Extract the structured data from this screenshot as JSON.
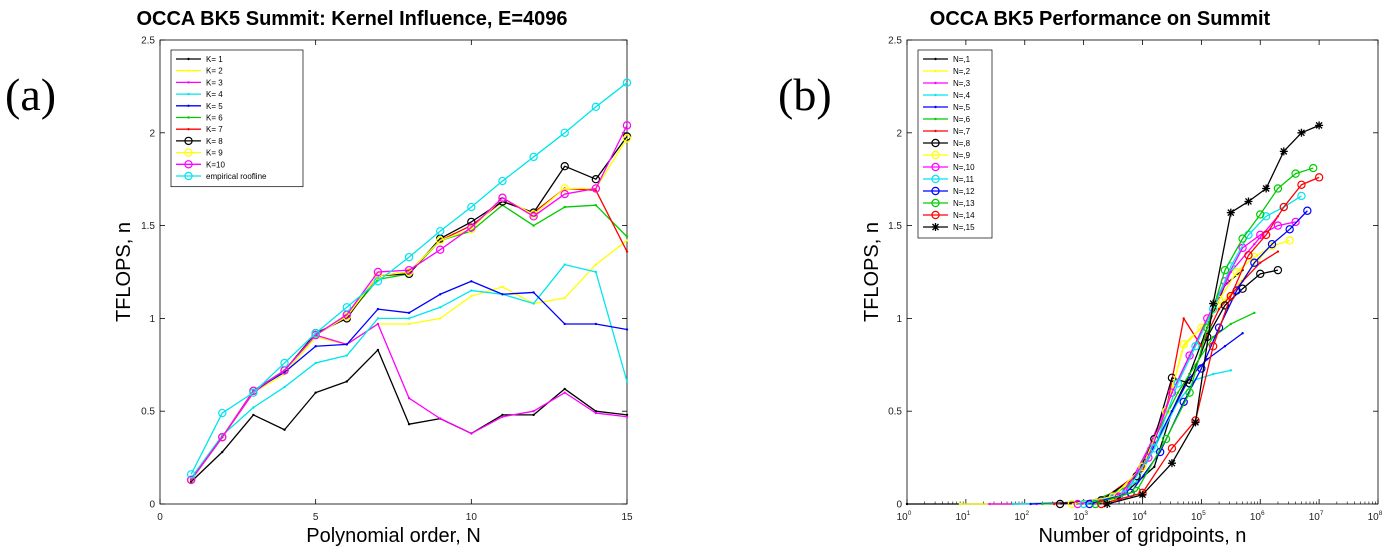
{
  "chart_data": [
    {
      "type": "line",
      "panel_label": "(a)",
      "title": "OCCA BK5 Summit: Kernel Influence, E=4096",
      "xlabel": "Polynomial order, N",
      "ylabel": "TFLOPS, n",
      "xlim": [
        0,
        15
      ],
      "ylim": [
        0,
        2.5
      ],
      "x_ticks": [
        0,
        5,
        10,
        15
      ],
      "y_ticks": [
        0,
        0.5,
        1,
        1.5,
        2,
        2.5
      ],
      "legend_position": "top-left",
      "x": [
        1,
        2,
        3,
        4,
        5,
        6,
        7,
        8,
        9,
        10,
        11,
        12,
        13,
        14,
        15
      ],
      "series": [
        {
          "name": "K= 1",
          "color": "#000000",
          "marker": "dot",
          "values": [
            0.12,
            0.28,
            0.48,
            0.4,
            0.6,
            0.66,
            0.83,
            0.43,
            0.46,
            0.38,
            0.48,
            0.48,
            0.62,
            0.5,
            0.48
          ]
        },
        {
          "name": "K= 2",
          "color": "#ffff00",
          "marker": "dot",
          "values": [
            0.13,
            0.36,
            0.6,
            0.7,
            0.9,
            0.86,
            0.97,
            0.97,
            1.0,
            1.12,
            1.17,
            1.08,
            1.11,
            1.29,
            1.42
          ]
        },
        {
          "name": "K= 3",
          "color": "#ff00ff",
          "marker": "dot",
          "values": [
            0.13,
            0.36,
            0.6,
            0.72,
            0.91,
            0.86,
            0.97,
            0.57,
            0.46,
            0.38,
            0.47,
            0.5,
            0.6,
            0.49,
            0.47
          ]
        },
        {
          "name": "K= 4",
          "color": "#00e5ee",
          "marker": "dot",
          "values": [
            0.14,
            0.37,
            0.52,
            0.63,
            0.76,
            0.8,
            1.0,
            1.0,
            1.06,
            1.15,
            1.13,
            1.08,
            1.29,
            1.25,
            0.66
          ]
        },
        {
          "name": "K= 5",
          "color": "#0000ff",
          "marker": "dot",
          "values": [
            0.13,
            0.36,
            0.61,
            0.71,
            0.85,
            0.86,
            1.05,
            1.03,
            1.13,
            1.2,
            1.13,
            1.14,
            0.97,
            0.97,
            0.94
          ]
        },
        {
          "name": "K= 6",
          "color": "#00cc00",
          "marker": "dot",
          "values": [
            0.13,
            0.36,
            0.61,
            0.72,
            0.91,
            1.01,
            1.21,
            1.24,
            1.42,
            1.47,
            1.61,
            1.5,
            1.6,
            1.61,
            1.44
          ]
        },
        {
          "name": "K= 7",
          "color": "#ff0000",
          "marker": "dot",
          "values": [
            0.13,
            0.36,
            0.61,
            0.72,
            0.91,
            1.01,
            1.23,
            1.25,
            1.42,
            1.5,
            1.63,
            1.57,
            1.7,
            1.69,
            1.36
          ]
        },
        {
          "name": "K= 8",
          "color": "#000000",
          "marker": "circle",
          "values": [
            0.13,
            0.36,
            0.61,
            0.72,
            0.92,
            1.0,
            1.23,
            1.24,
            1.43,
            1.52,
            1.63,
            1.57,
            1.82,
            1.75,
            1.98
          ]
        },
        {
          "name": "K= 9",
          "color": "#ffff00",
          "marker": "circle",
          "values": [
            0.13,
            0.36,
            0.61,
            0.72,
            0.91,
            1.01,
            1.23,
            1.25,
            1.42,
            1.48,
            1.65,
            1.56,
            1.7,
            1.7,
            1.97
          ]
        },
        {
          "name": "K=10",
          "color": "#ff00ff",
          "marker": "circle",
          "values": [
            0.13,
            0.36,
            0.61,
            0.72,
            0.91,
            1.02,
            1.25,
            1.26,
            1.37,
            1.49,
            1.65,
            1.55,
            1.67,
            1.7,
            2.04
          ]
        },
        {
          "name": "empirical roofline",
          "color": "#00e5ee",
          "marker": "circle",
          "values": [
            0.16,
            0.49,
            0.6,
            0.76,
            0.92,
            1.06,
            1.2,
            1.33,
            1.47,
            1.6,
            1.74,
            1.87,
            2.0,
            2.14,
            2.27
          ]
        }
      ]
    },
    {
      "type": "line",
      "panel_label": "(b)",
      "title": "OCCA BK5 Performance on Summit",
      "xlabel": "Number of gridpoints, n",
      "ylabel": "TFLOPS, n",
      "xscale": "log",
      "xlim_exponents": [
        0,
        8
      ],
      "ylim": [
        0,
        2.5
      ],
      "x_tick_base": "10",
      "x_tick_exponents": [
        "0",
        "1",
        "2",
        "3",
        "4",
        "5",
        "6",
        "7",
        "8"
      ],
      "y_ticks": [
        0,
        0.5,
        1,
        1.5,
        2,
        2.5
      ],
      "legend_position": "top-left",
      "series": [
        {
          "name": "N=,1",
          "color": "#000000",
          "marker": "dot",
          "log10_x": [
            0.0,
            0.9,
            1.8,
            2.7,
            3.6,
            4.2,
            4.5,
            4.8,
            5.1,
            5.4,
            5.7
          ],
          "values": [
            0.0,
            0.0,
            0.0,
            0.005,
            0.03,
            0.2,
            0.5,
            0.7,
            0.95,
            1.18,
            1.26
          ]
        },
        {
          "name": "N=,2",
          "color": "#ffff00",
          "marker": "dot",
          "log10_x": [
            0.9,
            1.8,
            2.7,
            3.5,
            4.0,
            4.4,
            4.7,
            5.0,
            5.4,
            5.8,
            6.2
          ],
          "values": [
            0.0,
            0.0,
            0.005,
            0.03,
            0.2,
            0.5,
            0.85,
            0.95,
            1.1,
            1.25,
            1.4
          ]
        },
        {
          "name": "N=,3",
          "color": "#ff00ff",
          "marker": "dot",
          "log10_x": [
            1.4,
            2.2,
            3.0,
            3.7,
            4.1,
            4.5,
            4.8,
            5.2,
            5.5,
            5.9,
            6.3
          ],
          "values": [
            0.0,
            0.0,
            0.01,
            0.06,
            0.3,
            0.6,
            0.8,
            1.05,
            1.25,
            1.4,
            1.55
          ]
        },
        {
          "name": "N=,4",
          "color": "#00e5ee",
          "marker": "dot",
          "log10_x": [
            1.8,
            2.6,
            3.3,
            3.9,
            4.2,
            4.6,
            4.9,
            5.2,
            5.5
          ],
          "values": [
            0.0,
            0.005,
            0.02,
            0.12,
            0.3,
            0.55,
            0.67,
            0.7,
            0.72
          ]
        },
        {
          "name": "N=,5",
          "color": "#0000ff",
          "marker": "dot",
          "log10_x": [
            2.1,
            2.9,
            3.6,
            4.1,
            4.5,
            4.8,
            5.1,
            5.4,
            5.7
          ],
          "values": [
            0.0,
            0.01,
            0.04,
            0.25,
            0.5,
            0.68,
            0.78,
            0.85,
            0.92
          ]
        },
        {
          "name": "N=,6",
          "color": "#00cc00",
          "marker": "dot",
          "log10_x": [
            2.3,
            3.1,
            3.8,
            4.2,
            4.6,
            4.9,
            5.2,
            5.5,
            5.9
          ],
          "values": [
            0.0,
            0.01,
            0.1,
            0.35,
            0.6,
            0.75,
            0.9,
            0.97,
            1.03
          ]
        },
        {
          "name": "N=,7",
          "color": "#ff0000",
          "marker": "dot",
          "log10_x": [
            2.5,
            3.3,
            4.0,
            4.4,
            4.7,
            5.0,
            5.3,
            5.7,
            6.0,
            6.3
          ],
          "values": [
            0.0,
            0.02,
            0.18,
            0.5,
            1.0,
            0.85,
            1.05,
            1.2,
            1.3,
            1.36
          ]
        },
        {
          "name": "N=,8",
          "color": "#000000",
          "marker": "circle",
          "log10_x": [
            2.6,
            3.3,
            3.9,
            4.2,
            4.5,
            4.8,
            5.1,
            5.4,
            5.7,
            6.0,
            6.3
          ],
          "values": [
            0.0,
            0.02,
            0.15,
            0.35,
            0.68,
            0.65,
            0.9,
            1.07,
            1.16,
            1.24,
            1.26
          ]
        },
        {
          "name": "N=,9",
          "color": "#ffff00",
          "marker": "circle",
          "log10_x": [
            2.8,
            3.5,
            4.0,
            4.4,
            4.7,
            5.0,
            5.3,
            5.6,
            5.9,
            6.2,
            6.5
          ],
          "values": [
            0.0,
            0.04,
            0.2,
            0.5,
            0.86,
            0.95,
            1.1,
            1.25,
            1.33,
            1.39,
            1.42
          ]
        },
        {
          "name": "N=,10",
          "color": "#ff00ff",
          "marker": "circle",
          "log10_x": [
            2.9,
            3.6,
            4.1,
            4.5,
            4.8,
            5.1,
            5.4,
            5.7,
            6.0,
            6.3,
            6.6
          ],
          "values": [
            0.0,
            0.04,
            0.25,
            0.6,
            0.8,
            1.0,
            1.2,
            1.38,
            1.45,
            1.5,
            1.52
          ]
        },
        {
          "name": "N=,11",
          "color": "#00e5ee",
          "marker": "circle",
          "log10_x": [
            3.0,
            3.7,
            4.2,
            4.6,
            4.9,
            5.2,
            5.5,
            5.8,
            6.1,
            6.4,
            6.7
          ],
          "values": [
            0.0,
            0.05,
            0.3,
            0.65,
            0.85,
            1.05,
            1.28,
            1.45,
            1.55,
            1.6,
            1.66
          ]
        },
        {
          "name": "N=,12",
          "color": "#0000ff",
          "marker": "circle",
          "log10_x": [
            3.1,
            3.8,
            4.3,
            4.7,
            5.0,
            5.3,
            5.6,
            5.9,
            6.2,
            6.5,
            6.8
          ],
          "values": [
            0.0,
            0.06,
            0.28,
            0.55,
            0.73,
            0.95,
            1.15,
            1.3,
            1.4,
            1.48,
            1.58
          ]
        },
        {
          "name": "N=,13",
          "color": "#00cc00",
          "marker": "circle",
          "log10_x": [
            3.2,
            3.9,
            4.4,
            4.8,
            5.1,
            5.4,
            5.7,
            6.0,
            6.3,
            6.6,
            6.9
          ],
          "values": [
            0.0,
            0.07,
            0.35,
            0.6,
            0.95,
            1.26,
            1.43,
            1.56,
            1.7,
            1.78,
            1.81
          ]
        },
        {
          "name": "N=,14",
          "color": "#ff0000",
          "marker": "circle",
          "log10_x": [
            3.3,
            4.0,
            4.5,
            4.9,
            5.2,
            5.5,
            5.8,
            6.1,
            6.4,
            6.7,
            7.0
          ],
          "values": [
            0.0,
            0.06,
            0.3,
            0.45,
            0.85,
            1.12,
            1.34,
            1.45,
            1.6,
            1.72,
            1.76
          ]
        },
        {
          "name": "N=,15",
          "color": "#000000",
          "marker": "star",
          "log10_x": [
            3.4,
            4.0,
            4.5,
            4.9,
            5.2,
            5.5,
            5.8,
            6.1,
            6.4,
            6.7,
            7.0
          ],
          "values": [
            0.0,
            0.05,
            0.22,
            0.44,
            1.08,
            1.57,
            1.63,
            1.7,
            1.9,
            2.0,
            2.04
          ]
        }
      ]
    }
  ]
}
